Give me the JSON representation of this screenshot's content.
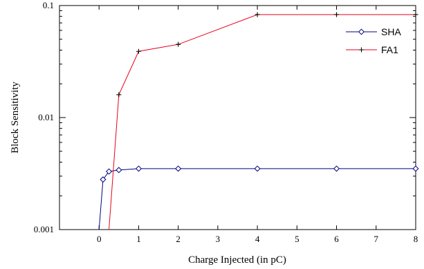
{
  "chart_data": {
    "type": "line",
    "xlabel": "Charge Injected (in pC)",
    "ylabel": "Block Sensitivity",
    "xlim": [
      -1,
      8
    ],
    "ylim": [
      0.001,
      0.1
    ],
    "yscale": "log",
    "x_ticks": [
      "0",
      "1",
      "2",
      "3",
      "4",
      "5",
      "6",
      "7",
      "8"
    ],
    "y_ticks": [
      {
        "label": "0.1",
        "value": 0.1
      },
      {
        "label": "0.01",
        "value": 0.01
      },
      {
        "label": "0.001",
        "value": 0.001
      }
    ],
    "grid": false,
    "legend_position": "top-right",
    "series": [
      {
        "name": "SHA",
        "color": "#000080",
        "marker": "diamond",
        "x": [
          0,
          0.1,
          0.25,
          0.5,
          1,
          2,
          4,
          6,
          8
        ],
        "y": [
          0.001,
          0.0028,
          0.0033,
          0.0034,
          0.0035,
          0.0035,
          0.0035,
          0.0035,
          0.0035
        ]
      },
      {
        "name": "FA1",
        "color": "#e8001c",
        "marker": "plus",
        "x": [
          0.25,
          0.5,
          1,
          2,
          4,
          6,
          8
        ],
        "y": [
          0.001,
          0.016,
          0.039,
          0.045,
          0.083,
          0.083,
          0.083
        ]
      }
    ]
  }
}
